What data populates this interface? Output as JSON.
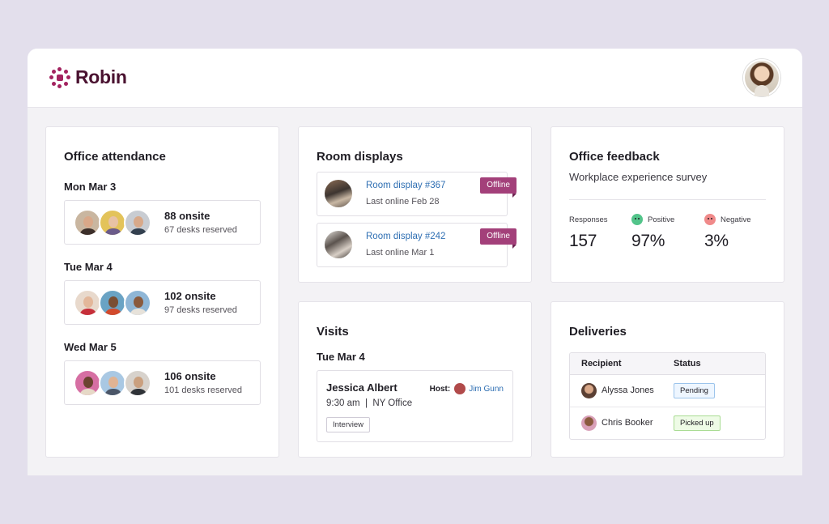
{
  "brand": {
    "name": "Robin",
    "color": "#a3235f"
  },
  "attendance": {
    "title": "Office attendance",
    "days": [
      {
        "label": "Mon Mar 3",
        "onsite": "88 onsite",
        "reserved": "67 desks reserved"
      },
      {
        "label": "Tue Mar 4",
        "onsite": "102 onsite",
        "reserved": "97 desks reserved"
      },
      {
        "label": "Wed Mar 5",
        "onsite": "106 onsite",
        "reserved": "101 desks reserved"
      }
    ]
  },
  "rooms": {
    "title": "Room displays",
    "items": [
      {
        "name": "Room display #367",
        "last_online": "Last online Feb 28",
        "status": "Offline"
      },
      {
        "name": "Room display #242",
        "last_online": "Last online Mar 1",
        "status": "Offline"
      }
    ]
  },
  "feedback": {
    "title": "Office feedback",
    "subtitle": "Workplace experience survey",
    "metrics": {
      "responses": {
        "label": "Responses",
        "value": "157"
      },
      "positive": {
        "label": "Positive",
        "value": "97%",
        "color": "#53c48a"
      },
      "negative": {
        "label": "Negative",
        "value": "3%",
        "color": "#f08a8a"
      }
    }
  },
  "visits": {
    "title": "Visits",
    "date": "Tue Mar 4",
    "visit": {
      "visitor": "Jessica Albert",
      "time_location": "9:30 am  |  NY Office",
      "host_label": "Host:",
      "host_name": "Jim Gunn",
      "tag": "Interview"
    }
  },
  "deliveries": {
    "title": "Deliveries",
    "columns": [
      "Recipient",
      "Status"
    ],
    "rows": [
      {
        "recipient": "Alyssa Jones",
        "status": "Pending"
      },
      {
        "recipient": "Chris Booker",
        "status": "Picked up"
      }
    ]
  },
  "colors": {
    "link": "#2f6fb3",
    "offline_badge": "#a3407a",
    "background": "#e3dfec"
  }
}
